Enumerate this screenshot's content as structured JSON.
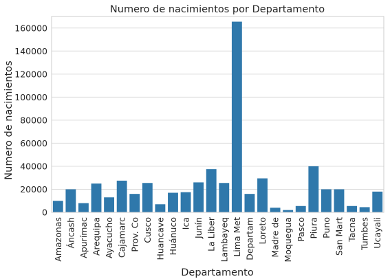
{
  "chart_data": {
    "type": "bar",
    "title": "Numero de nacimientos por Departamento",
    "xlabel": "Departamento",
    "ylabel": "Numero de nacimientos",
    "ylim": [
      0,
      170000
    ],
    "yticks": [
      0,
      20000,
      40000,
      60000,
      80000,
      100000,
      120000,
      140000,
      160000
    ],
    "grid": true,
    "bar_color": "#2f78ab",
    "categories": [
      "Amazonas",
      "Áncash",
      "Apurímac",
      "Arequipa",
      "Ayacucho",
      "Cajamarc",
      "Prov. Co",
      "Cusco",
      "Huancave",
      "Huánuco",
      "Ica",
      "Junín",
      "La Liber",
      "Lambayeq",
      "Lima Met",
      "Departam",
      "Loreto",
      "Madre de",
      "Moquegua",
      "Pasco",
      "Piura",
      "Puno",
      "San Mart",
      "Tacna",
      "Tumbes",
      "Ucayali"
    ],
    "values": [
      10000,
      20000,
      8000,
      25000,
      13000,
      27500,
      16000,
      25500,
      7000,
      17000,
      17500,
      26000,
      37500,
      25500,
      165500,
      16000,
      29500,
      4000,
      2000,
      5500,
      40000,
      20000,
      20000,
      5500,
      4500,
      18000
    ]
  }
}
